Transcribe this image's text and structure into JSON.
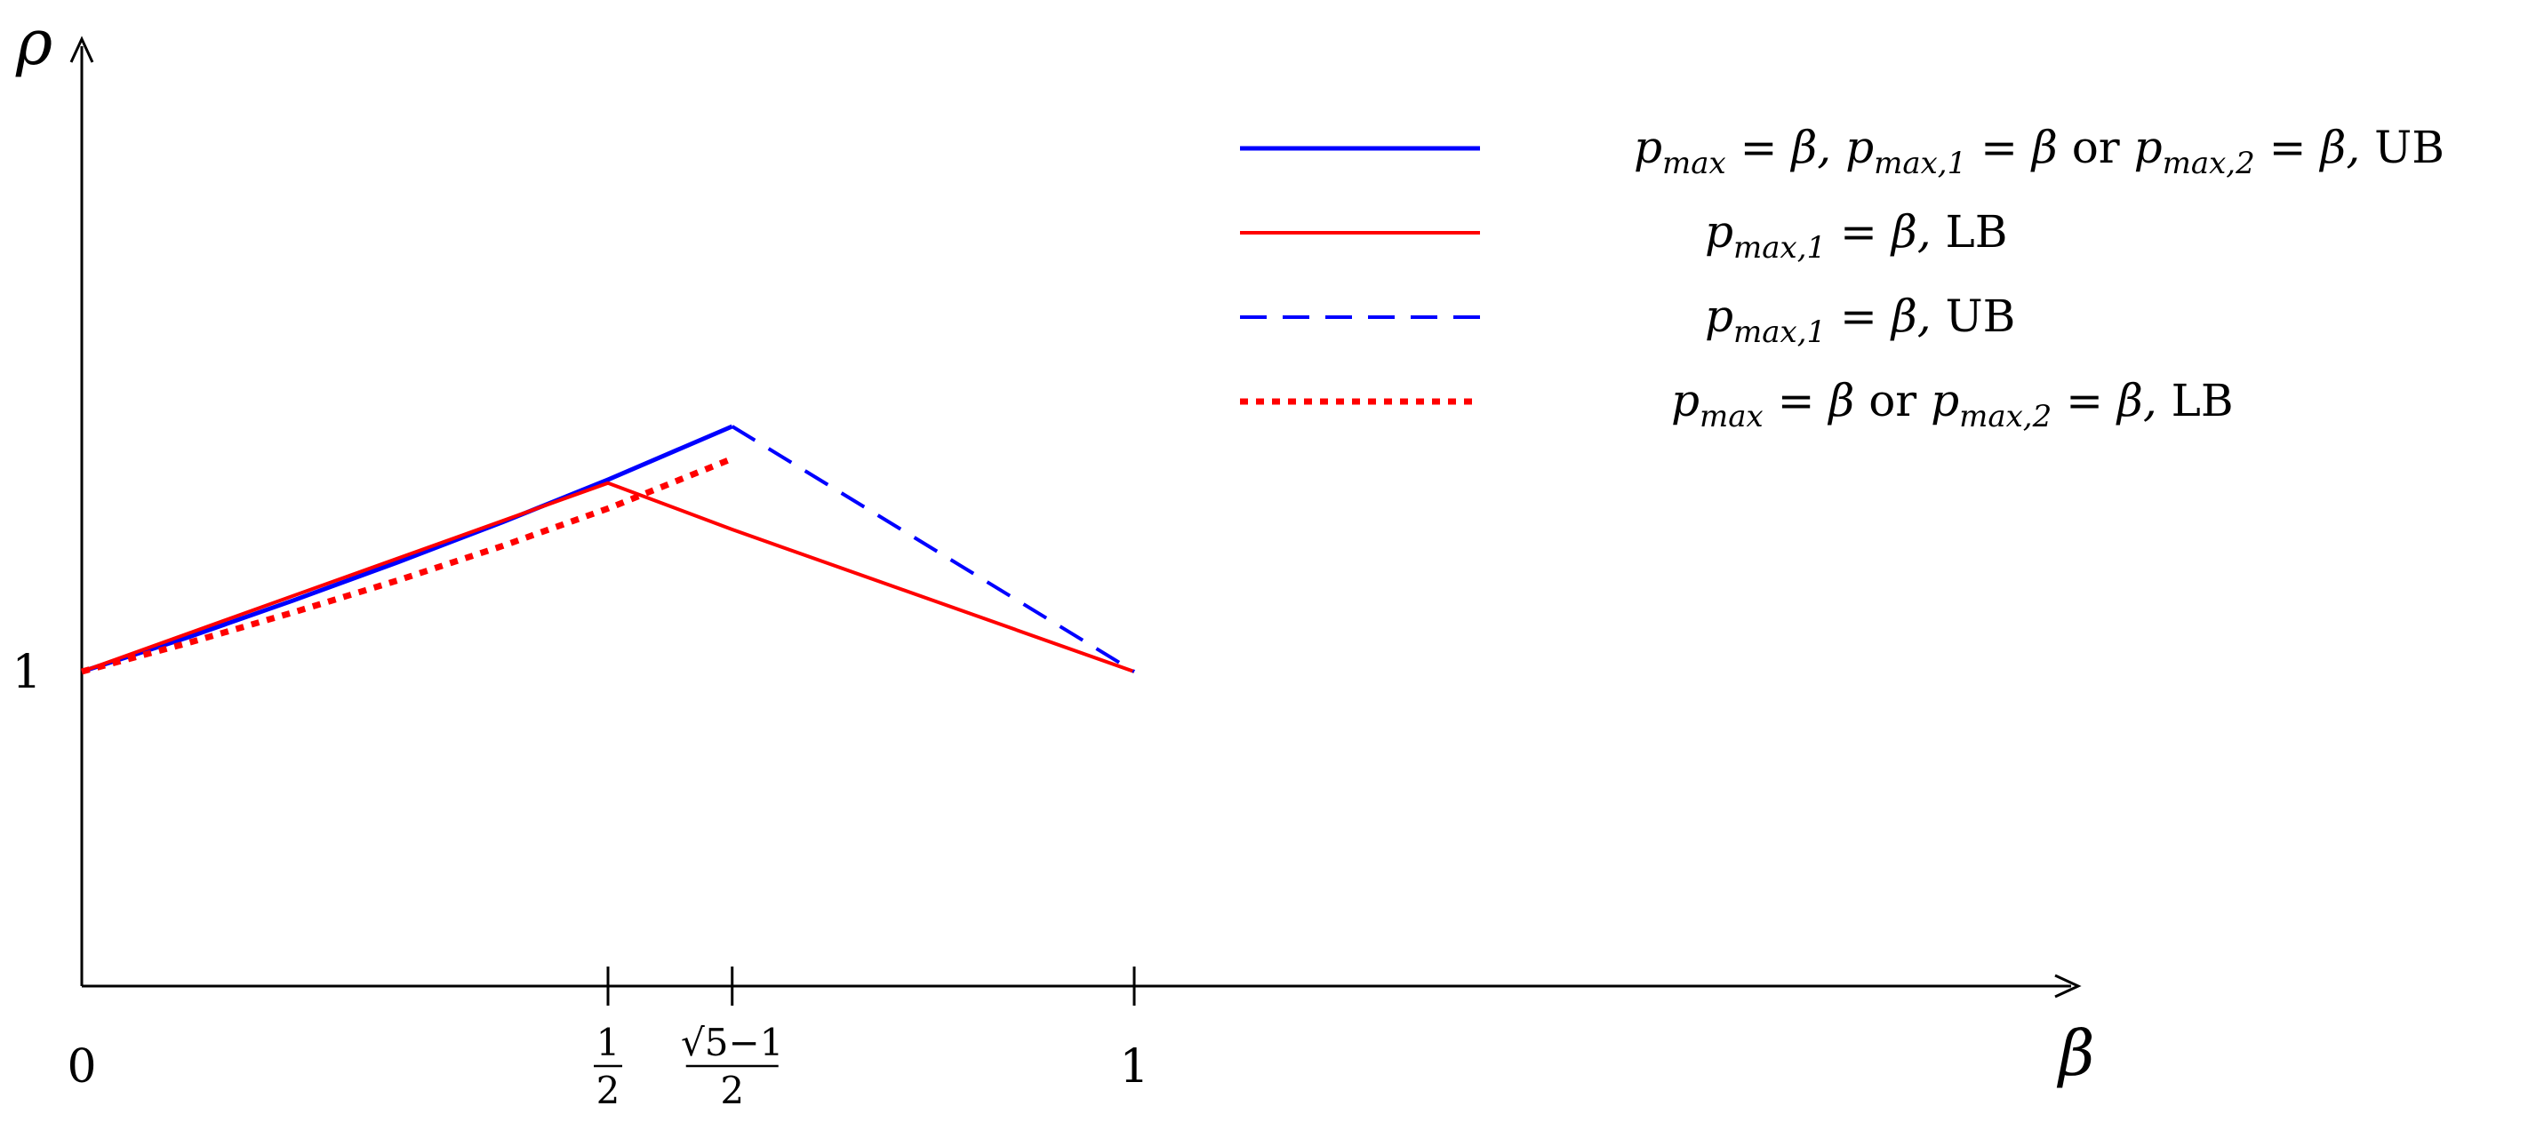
{
  "chart_data": {
    "type": "line",
    "xlabel": "β",
    "ylabel": "ρ",
    "x_ticks": [
      {
        "value": 0,
        "label": "0"
      },
      {
        "value": 0.5,
        "label_num": "1",
        "label_den": "2"
      },
      {
        "value": 0.618,
        "label_num": "√5−1",
        "label_den": "2"
      },
      {
        "value": 1,
        "label": "1"
      }
    ],
    "y_ticks": [
      {
        "value": 1,
        "label": "1"
      }
    ],
    "series": [
      {
        "name": "pmax = β, pmax,1 = β or pmax,2 = β, UB",
        "legend_tex": [
          [
            "p",
            "i"
          ],
          [
            "max",
            "sub"
          ],
          [
            " = β, ",
            "i"
          ],
          [
            "p",
            "i"
          ],
          [
            "max,1",
            "sub"
          ],
          [
            " = β ",
            "i"
          ],
          [
            "or ",
            "r"
          ],
          [
            "p",
            "i"
          ],
          [
            "max,2",
            "sub"
          ],
          [
            " = β, ",
            "i"
          ],
          [
            "UB",
            "r"
          ]
        ],
        "color": "#0000ff",
        "style": "solid",
        "x": [
          0,
          0.1,
          0.2,
          0.3,
          0.4,
          0.5,
          0.618
        ],
        "y": [
          1.0,
          1.06,
          1.125,
          1.193,
          1.264,
          1.339,
          1.433
        ]
      },
      {
        "name": "pmax,1 = β, LB",
        "legend_tex": [
          [
            "p",
            "i"
          ],
          [
            "max,1",
            "sub"
          ],
          [
            " = β, ",
            "i"
          ],
          [
            "LB",
            "r"
          ]
        ],
        "color": "#ff0000",
        "style": "solid",
        "x": [
          0,
          0.5,
          0.618,
          1
        ],
        "y": [
          1.0,
          1.333,
          1.251,
          1.0
        ]
      },
      {
        "name": "pmax,1 = β, UB",
        "legend_tex": [
          [
            "p",
            "i"
          ],
          [
            "max,1",
            "sub"
          ],
          [
            " = β, ",
            "i"
          ],
          [
            "UB",
            "r"
          ]
        ],
        "color": "#0000ff",
        "style": "dashed",
        "x": [
          0.618,
          1
        ],
        "y": [
          1.433,
          1.0
        ]
      },
      {
        "name": "pmax = β or pmax,2 = β, LB",
        "legend_tex": [
          [
            "p",
            "i"
          ],
          [
            "max",
            "sub"
          ],
          [
            " = β ",
            "i"
          ],
          [
            "or ",
            "r"
          ],
          [
            "p",
            "i"
          ],
          [
            "max,2",
            "sub"
          ],
          [
            " = β, ",
            "i"
          ],
          [
            "LB",
            "r"
          ]
        ],
        "color": "#ff0000",
        "style": "dotted",
        "x": [
          0,
          0.1,
          0.2,
          0.3,
          0.4,
          0.5,
          0.618
        ],
        "y": [
          1.0,
          1.05,
          1.104,
          1.161,
          1.222,
          1.288,
          1.376
        ]
      }
    ],
    "xlim": [
      0,
      1.9
    ],
    "ylim": [
      0.55,
      1.95
    ],
    "grid": false,
    "legend_position": "top-right"
  }
}
